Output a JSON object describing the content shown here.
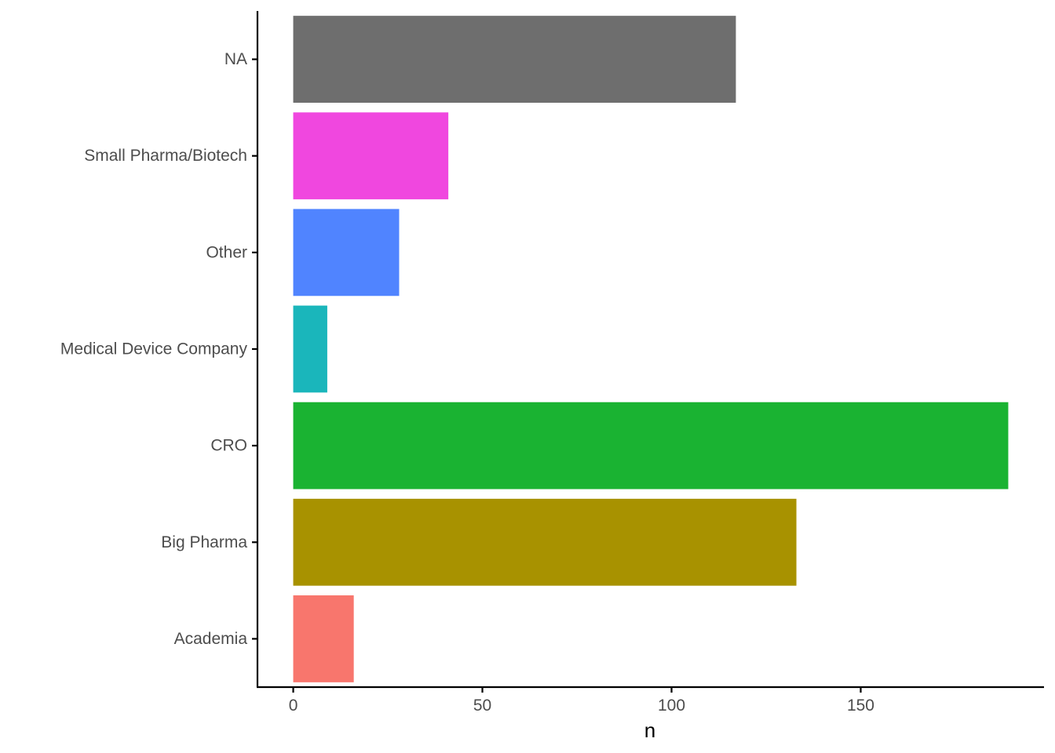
{
  "chart_data": {
    "type": "bar",
    "orientation": "horizontal",
    "title": "",
    "xlabel": "n",
    "ylabel": "",
    "categories": [
      "Academia",
      "Big Pharma",
      "CRO",
      "Medical Device Company",
      "Other",
      "Small Pharma/Biotech",
      "NA"
    ],
    "values": [
      16,
      133,
      189,
      9,
      28,
      41,
      117
    ],
    "colors": [
      "#F8766D",
      "#A89200",
      "#1AB332",
      "#1AB6BB",
      "#5084FF",
      "#F047DF",
      "#6E6E6E"
    ],
    "xlim": [
      -9.45,
      198.45
    ],
    "xticks": [
      0,
      50,
      100,
      150
    ],
    "grid": false,
    "legend": "none"
  }
}
